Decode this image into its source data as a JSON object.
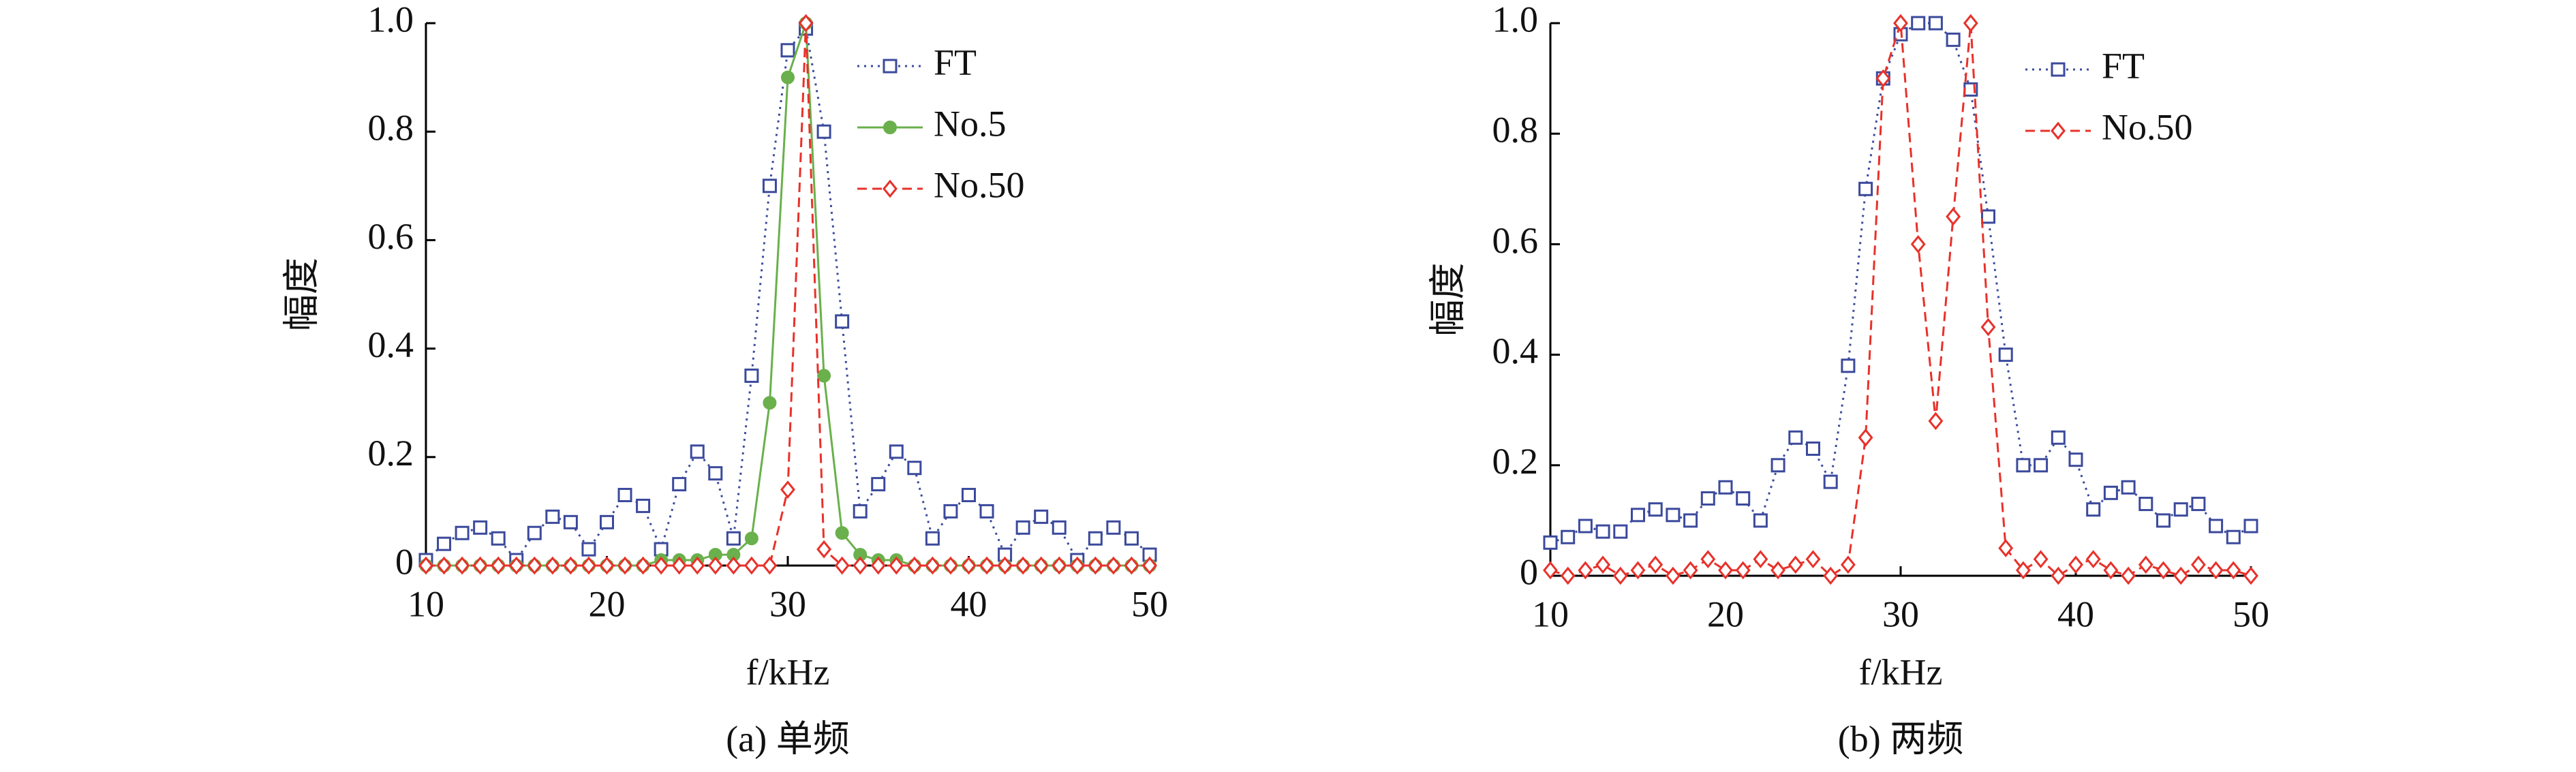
{
  "chart_data": [
    {
      "type": "line",
      "ylabel": "幅度",
      "xlabel": "f/kHz",
      "caption": "(a) 单频",
      "x": [
        10,
        11,
        12,
        13,
        14,
        15,
        16,
        17,
        18,
        19,
        20,
        21,
        22,
        23,
        24,
        25,
        26,
        27,
        28,
        29,
        30,
        31,
        32,
        33,
        34,
        35,
        36,
        37,
        38,
        39,
        40,
        41,
        42,
        43,
        44,
        45,
        46,
        47,
        48,
        49,
        50
      ],
      "series": [
        {
          "name": "FT",
          "color": "#3b4a9c",
          "marker": "square",
          "dash": "dotted",
          "values": [
            0.01,
            0.04,
            0.06,
            0.07,
            0.05,
            0.01,
            0.06,
            0.09,
            0.08,
            0.03,
            0.08,
            0.13,
            0.11,
            0.03,
            0.15,
            0.21,
            0.17,
            0.05,
            0.35,
            0.7,
            0.95,
            0.99,
            0.8,
            0.45,
            0.1,
            0.15,
            0.21,
            0.18,
            0.05,
            0.1,
            0.13,
            0.1,
            0.02,
            0.07,
            0.09,
            0.07,
            0.01,
            0.05,
            0.07,
            0.05,
            0.02
          ]
        },
        {
          "name": "No.5",
          "color": "#6ab04c",
          "marker": "circle",
          "dash": "solid",
          "values": [
            0,
            0,
            0,
            0,
            0,
            0,
            0,
            0,
            0,
            0,
            0,
            0,
            0,
            0.01,
            0.01,
            0.01,
            0.02,
            0.02,
            0.05,
            0.3,
            0.9,
            1.0,
            0.35,
            0.06,
            0.02,
            0.01,
            0.01,
            0,
            0,
            0,
            0,
            0,
            0,
            0,
            0,
            0,
            0,
            0,
            0,
            0,
            0
          ]
        },
        {
          "name": "No.50",
          "color": "#e8312a",
          "marker": "diamond",
          "dash": "dashed",
          "values": [
            0,
            0,
            0,
            0,
            0,
            0,
            0,
            0,
            0,
            0,
            0,
            0,
            0,
            0,
            0,
            0,
            0,
            0,
            0,
            0,
            0.14,
            1.0,
            0.03,
            0,
            0,
            0,
            0,
            0,
            0,
            0,
            0,
            0,
            0,
            0,
            0,
            0,
            0,
            0,
            0,
            0,
            0
          ]
        }
      ],
      "xlim": [
        10,
        50
      ],
      "xticks": [
        10,
        20,
        30,
        40,
        50
      ],
      "ylim": [
        0,
        1
      ],
      "yticks": [
        0,
        0.2,
        0.4,
        0.6,
        0.8,
        {
          "value": 1,
          "label": "1.0"
        }
      ],
      "legend": "upper right"
    },
    {
      "type": "line",
      "ylabel": "幅度",
      "xlabel": "f/kHz",
      "caption": "(b) 两频",
      "x": [
        10,
        11,
        12,
        13,
        14,
        15,
        16,
        17,
        18,
        19,
        20,
        21,
        22,
        23,
        24,
        25,
        26,
        27,
        28,
        29,
        30,
        31,
        32,
        33,
        34,
        35,
        36,
        37,
        38,
        39,
        40,
        41,
        42,
        43,
        44,
        45,
        46,
        47,
        48,
        49,
        50
      ],
      "series": [
        {
          "name": "FT",
          "color": "#3b4a9c",
          "marker": "square",
          "dash": "dotted",
          "values": [
            0.06,
            0.07,
            0.09,
            0.08,
            0.08,
            0.11,
            0.12,
            0.11,
            0.1,
            0.14,
            0.16,
            0.14,
            0.1,
            0.2,
            0.25,
            0.23,
            0.17,
            0.38,
            0.7,
            0.9,
            0.98,
            1.0,
            1.0,
            0.97,
            0.88,
            0.65,
            0.4,
            0.2,
            0.2,
            0.25,
            0.21,
            0.12,
            0.15,
            0.16,
            0.13,
            0.1,
            0.12,
            0.13,
            0.09,
            0.07,
            0.09
          ]
        },
        {
          "name": "No.50",
          "color": "#e8312a",
          "marker": "diamond",
          "dash": "dashed",
          "values": [
            0.01,
            0,
            0.01,
            0.02,
            0,
            0.01,
            0.02,
            0,
            0.01,
            0.03,
            0.01,
            0.01,
            0.03,
            0.01,
            0.02,
            0.03,
            0,
            0.02,
            0.25,
            0.9,
            1.0,
            0.6,
            0.28,
            0.65,
            1.0,
            0.45,
            0.05,
            0.01,
            0.03,
            0,
            0.02,
            0.03,
            0.01,
            0,
            0.02,
            0.01,
            0,
            0.02,
            0.01,
            0.01,
            0
          ]
        }
      ],
      "xlim": [
        10,
        50
      ],
      "xticks": [
        10,
        20,
        30,
        40,
        50
      ],
      "ylim": [
        0,
        1
      ],
      "yticks": [
        0,
        0.2,
        0.4,
        0.6,
        0.8,
        {
          "value": 1,
          "label": "1.0"
        }
      ],
      "legend": "upper right"
    }
  ]
}
